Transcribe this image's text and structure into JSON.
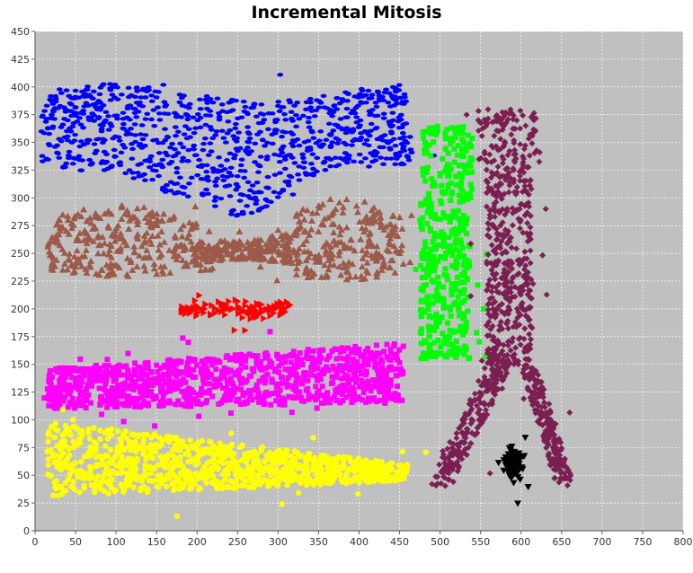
{
  "chart_data": {
    "type": "scatter",
    "title": "Incremental Mitosis",
    "xlabel": "",
    "ylabel": "",
    "xlim": [
      0,
      800
    ],
    "ylim": [
      0,
      450
    ],
    "x_ticks": [
      0,
      50,
      100,
      150,
      200,
      250,
      300,
      350,
      400,
      450,
      500,
      550,
      600,
      650,
      700,
      750,
      800
    ],
    "y_ticks": [
      0,
      25,
      50,
      75,
      100,
      125,
      150,
      175,
      200,
      225,
      250,
      275,
      300,
      325,
      350,
      375,
      400,
      425,
      450
    ],
    "grid": true,
    "background": "#c0c0c0",
    "legend": "none",
    "clusters": [
      {
        "id": "blue",
        "color": "#0000ff",
        "marker": "ellipse",
        "shape": "region",
        "description_region": {
          "x": [
            5,
            470
          ],
          "y": [
            280,
            420
          ],
          "upper_boundary": [
            [
              5,
              390
            ],
            [
              50,
              400
            ],
            [
              150,
              400
            ],
            [
              250,
              395
            ],
            [
              380,
              400
            ],
            [
              430,
              395
            ],
            [
              465,
              380
            ]
          ],
          "lower_boundary": [
            [
              5,
              350
            ],
            [
              60,
              325
            ],
            [
              130,
              315
            ],
            [
              200,
              310
            ],
            [
              260,
              285
            ],
            [
              320,
              300
            ],
            [
              380,
              325
            ],
            [
              430,
              335
            ],
            [
              465,
              345
            ]
          ]
        },
        "approx_count": 1400
      },
      {
        "id": "brown",
        "color": "#9c5a4a",
        "marker": "triangle",
        "shape": "region",
        "description_region": {
          "x": [
            15,
            460
          ],
          "y": [
            220,
            310
          ]
        },
        "approx_count": 1100
      },
      {
        "id": "red",
        "color": "#ff0000",
        "marker": "right-triangle",
        "shape": "region",
        "description_region": {
          "x": [
            180,
            315
          ],
          "y": [
            185,
            215
          ]
        },
        "approx_count": 150
      },
      {
        "id": "magenta",
        "color": "#ff00ff",
        "marker": "square",
        "shape": "region",
        "description_region": {
          "x": [
            5,
            460
          ],
          "y": [
            95,
            215
          ]
        },
        "approx_count": 1500
      },
      {
        "id": "yellow",
        "color": "#ffff00",
        "marker": "circle",
        "shape": "region",
        "description_region": {
          "x": [
            5,
            470
          ],
          "y": [
            0,
            110
          ]
        },
        "approx_count": 1600
      },
      {
        "id": "green",
        "color": "#00ff00",
        "marker": "square",
        "shape": "region",
        "description_region": {
          "x": [
            465,
            560
          ],
          "y": [
            150,
            420
          ]
        },
        "approx_count": 700
      },
      {
        "id": "purple",
        "color": "#7b1f52",
        "marker": "diamond",
        "shape": "region",
        "description_region": {
          "x": [
            490,
            690
          ],
          "y": [
            15,
            415
          ]
        },
        "approx_count": 1500
      },
      {
        "id": "black",
        "color": "#000000",
        "marker": "down-triangle",
        "shape": "region",
        "description_region": {
          "x": [
            560,
            615
          ],
          "y": [
            0,
            95
          ]
        },
        "approx_count": 150
      }
    ]
  }
}
